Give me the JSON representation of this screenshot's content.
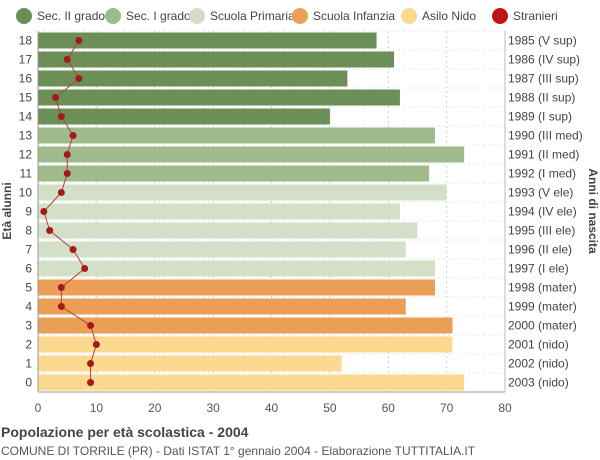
{
  "legend": [
    {
      "label": "Sec. II grado",
      "color": "#6b8f57"
    },
    {
      "label": "Sec. I grado",
      "color": "#9fbb8c"
    },
    {
      "label": "Scuola Primaria",
      "color": "#d3dfc6"
    },
    {
      "label": "Scuola Infanzia",
      "color": "#eb9e56"
    },
    {
      "label": "Asilo Nido",
      "color": "#fdd88f"
    },
    {
      "label": "Stranieri",
      "color": "#c0141c"
    }
  ],
  "footer": {
    "title": "Popolazione per età scolastica - 2004",
    "subtitle": "COMUNE DI TORRILE (PR) - Dati ISTAT 1° gennaio 2004 - Elaborazione TUTTITALIA.IT"
  },
  "chart_data": {
    "type": "bar",
    "orientation": "horizontal",
    "ylabel": "Età alunni",
    "ylabel_right": "Anni di nascita",
    "xlim": [
      0,
      80
    ],
    "xticks": [
      0,
      10,
      20,
      30,
      40,
      50,
      60,
      70,
      80
    ],
    "grid": true,
    "legend_position": "top",
    "rows": [
      {
        "age": "18",
        "year": "1985 (V sup)",
        "value": 58,
        "stranieri": 7,
        "group": 0
      },
      {
        "age": "17",
        "year": "1986 (IV sup)",
        "value": 61,
        "stranieri": 5,
        "group": 0
      },
      {
        "age": "16",
        "year": "1987 (III sup)",
        "value": 53,
        "stranieri": 7,
        "group": 0
      },
      {
        "age": "15",
        "year": "1988 (II sup)",
        "value": 62,
        "stranieri": 3,
        "group": 0
      },
      {
        "age": "14",
        "year": "1989 (I sup)",
        "value": 50,
        "stranieri": 4,
        "group": 0
      },
      {
        "age": "13",
        "year": "1990 (III med)",
        "value": 68,
        "stranieri": 6,
        "group": 1
      },
      {
        "age": "12",
        "year": "1991 (II med)",
        "value": 73,
        "stranieri": 5,
        "group": 1
      },
      {
        "age": "11",
        "year": "1992 (I med)",
        "value": 67,
        "stranieri": 5,
        "group": 1
      },
      {
        "age": "10",
        "year": "1993 (V ele)",
        "value": 70,
        "stranieri": 4,
        "group": 2
      },
      {
        "age": "9",
        "year": "1994 (IV ele)",
        "value": 62,
        "stranieri": 1,
        "group": 2
      },
      {
        "age": "8",
        "year": "1995 (III ele)",
        "value": 65,
        "stranieri": 2,
        "group": 2
      },
      {
        "age": "7",
        "year": "1996 (II ele)",
        "value": 63,
        "stranieri": 6,
        "group": 2
      },
      {
        "age": "6",
        "year": "1997 (I ele)",
        "value": 68,
        "stranieri": 8,
        "group": 2
      },
      {
        "age": "5",
        "year": "1998 (mater)",
        "value": 68,
        "stranieri": 4,
        "group": 3
      },
      {
        "age": "4",
        "year": "1999 (mater)",
        "value": 63,
        "stranieri": 4,
        "group": 3
      },
      {
        "age": "3",
        "year": "2000 (mater)",
        "value": 71,
        "stranieri": 9,
        "group": 3
      },
      {
        "age": "2",
        "year": "2001 (nido)",
        "value": 71,
        "stranieri": 10,
        "group": 4
      },
      {
        "age": "1",
        "year": "2002 (nido)",
        "value": 52,
        "stranieri": 9,
        "group": 4
      },
      {
        "age": "0",
        "year": "2003 (nido)",
        "value": 73,
        "stranieri": 9,
        "group": 4
      }
    ]
  }
}
